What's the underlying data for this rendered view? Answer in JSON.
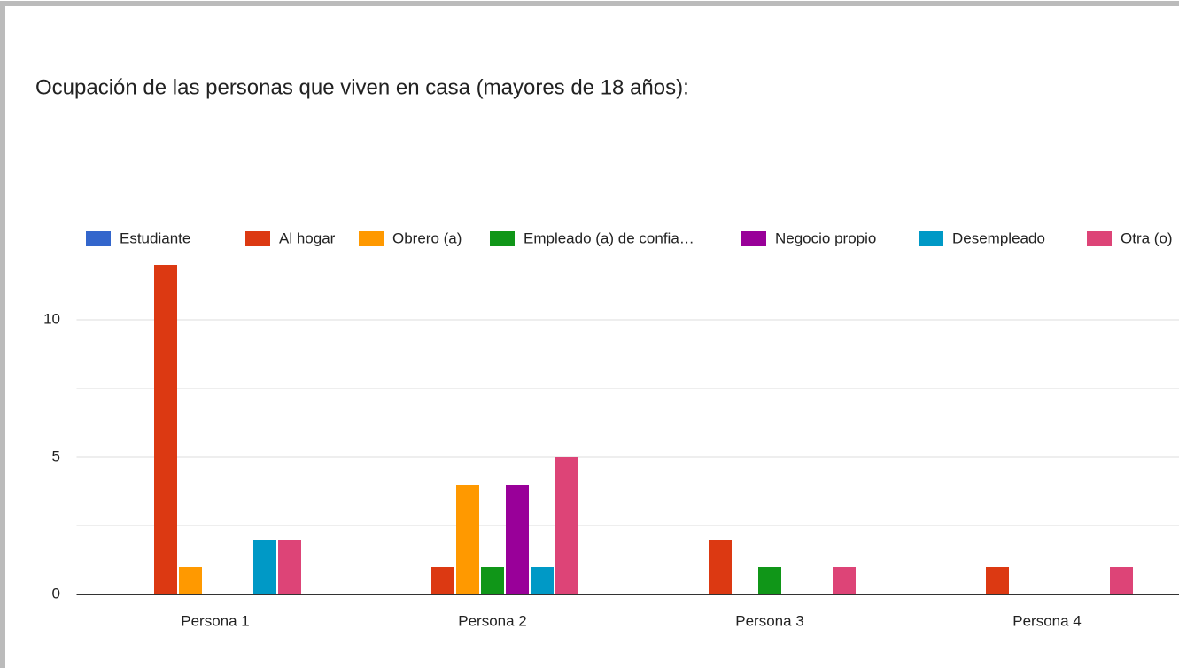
{
  "chart_data": {
    "type": "bar",
    "title": "Ocupación de las personas que viven en casa (mayores de 18 años):",
    "categories": [
      "Persona 1",
      "Persona 2",
      "Persona 3",
      "Persona 4"
    ],
    "series": [
      {
        "name": "Estudiante",
        "color": "#3366cc",
        "values": [
          0,
          0,
          0,
          0
        ]
      },
      {
        "name": "Al hogar",
        "color": "#dc3912",
        "values": [
          12,
          1,
          2,
          1
        ]
      },
      {
        "name": "Obrero (a)",
        "color": "#ff9900",
        "values": [
          1,
          4,
          0,
          0
        ]
      },
      {
        "name": "Empleado (a) de confia…",
        "color": "#109618",
        "values": [
          0,
          1,
          1,
          0
        ]
      },
      {
        "name": "Negocio propio",
        "color": "#990099",
        "values": [
          0,
          4,
          0,
          0
        ]
      },
      {
        "name": "Desempleado",
        "color": "#0099c6",
        "values": [
          2,
          1,
          0,
          0
        ]
      },
      {
        "name": "Otra (o)",
        "color": "#dd4477",
        "values": [
          2,
          5,
          1,
          1
        ]
      }
    ],
    "ylim": [
      0,
      12.5
    ],
    "yticks": [
      0,
      5,
      10
    ],
    "minor_yticks": [
      2.5,
      7.5
    ],
    "grid": true,
    "legend": "top"
  }
}
